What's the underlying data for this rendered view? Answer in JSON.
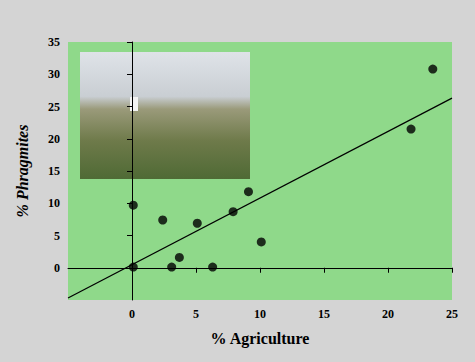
{
  "chart_data": {
    "type": "scatter",
    "x_label": "% Agriculture",
    "y_label": "% Phragmites",
    "x": [
      0.1,
      0.1,
      2.4,
      3.1,
      3.7,
      5.1,
      6.3,
      7.9,
      9.1,
      10.1,
      21.8,
      23.5
    ],
    "values": [
      9.7,
      0.1,
      7.4,
      0.1,
      1.6,
      6.9,
      0.1,
      8.7,
      11.8,
      4.0,
      21.5,
      30.8
    ],
    "color": "#000000",
    "marker": "circle",
    "trend_line": {
      "x": [
        -5,
        25
      ],
      "y": [
        -4.7,
        26.3
      ],
      "color": "#000000",
      "line_style": "solid"
    },
    "xlim": [
      -5,
      25
    ],
    "xticks": [
      0,
      5,
      10,
      15,
      20,
      25
    ],
    "ylim": [
      -5,
      35
    ],
    "yticks": [
      0,
      5,
      10,
      15,
      20,
      25,
      30,
      35
    ],
    "grid": false
  }
}
